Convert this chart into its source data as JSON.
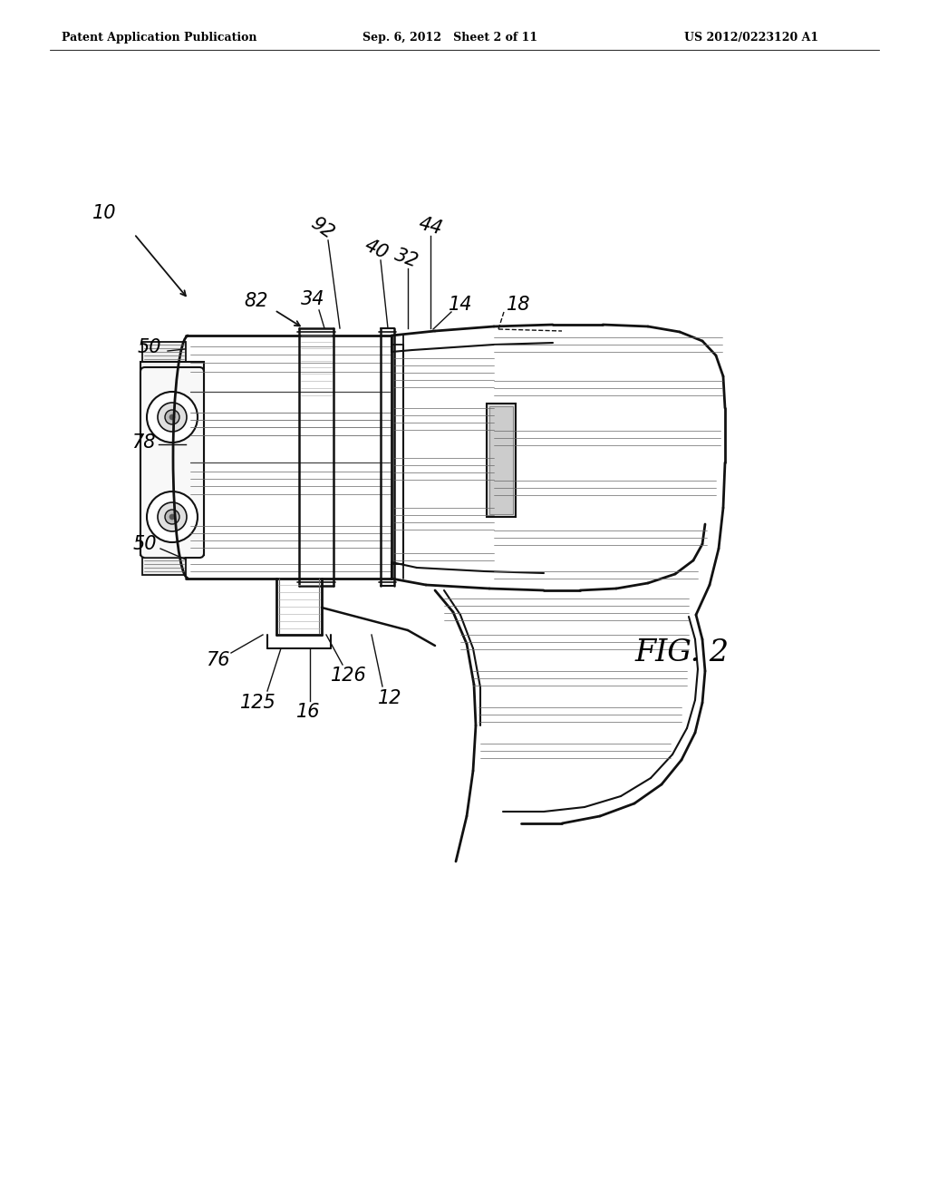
{
  "bg_color": "#ffffff",
  "header_left": "Patent Application Publication",
  "header_mid": "Sep. 6, 2012   Sheet 2 of 11",
  "header_right": "US 2012/0223120 A1",
  "fig_label": "FIG. 2",
  "lc": "#111111",
  "dc": "#666666",
  "lc2": "#333333"
}
